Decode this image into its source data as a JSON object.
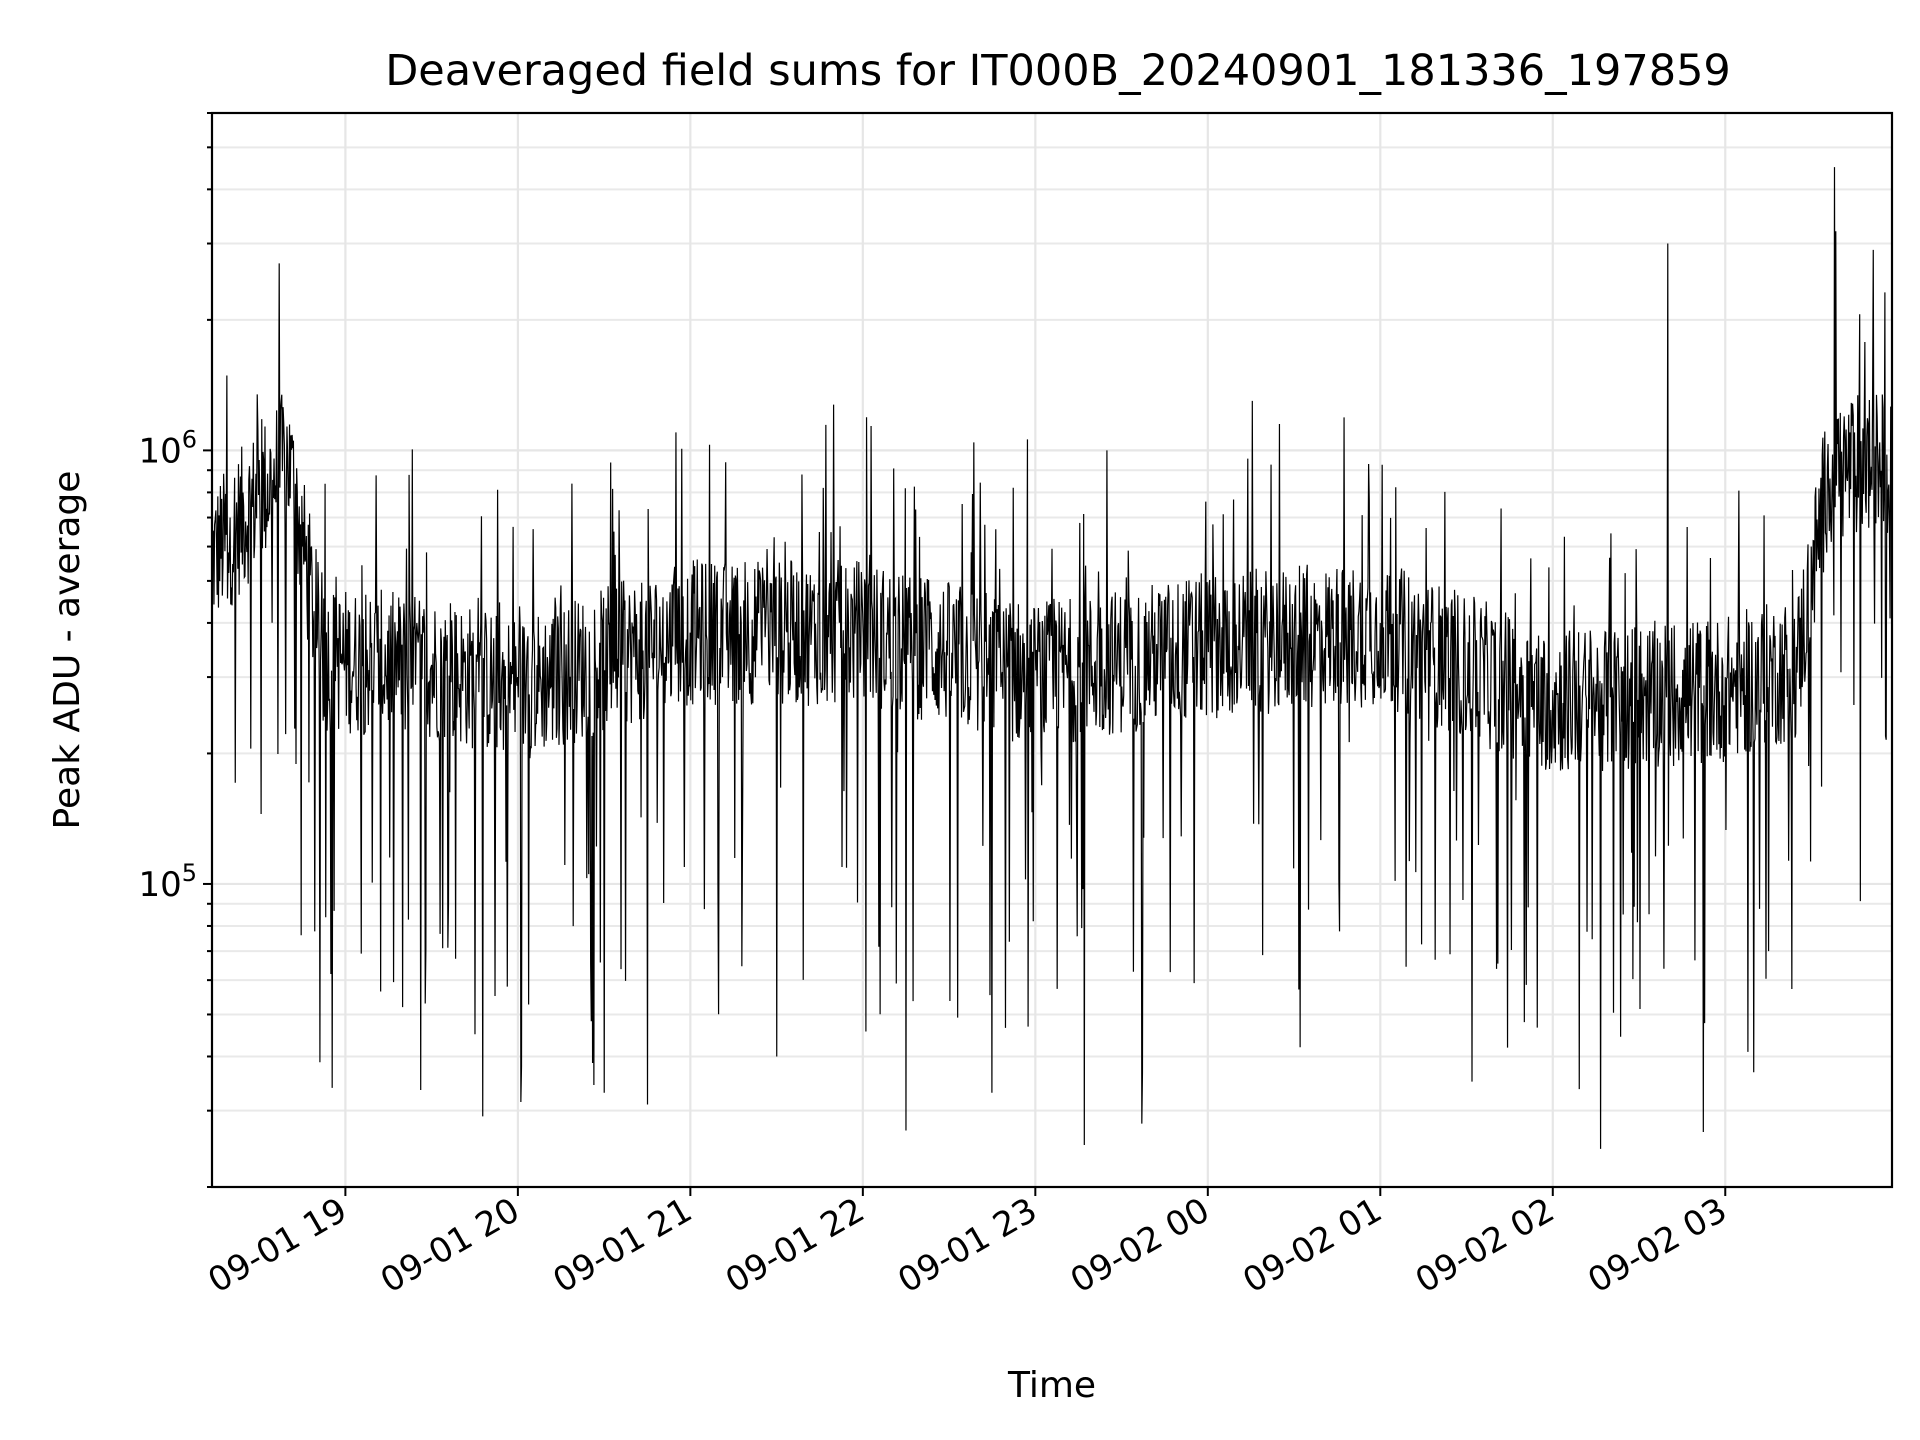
{
  "chart_data": {
    "type": "line",
    "title": "Deaveraged field sums for IT000B_20240901_181336_197859",
    "xlabel": "Time",
    "ylabel": "Peak ADU - average",
    "yscale": "log",
    "ylim": [
      20000,
      6000000
    ],
    "xlim": [
      "2024-09-01 18:13:36",
      "2024-09-02 03:58:00"
    ],
    "grid": true,
    "x_ticks": [
      {
        "label": "09-01 19",
        "time": "2024-09-01 19:00"
      },
      {
        "label": "09-01 20",
        "time": "2024-09-01 20:00"
      },
      {
        "label": "09-01 21",
        "time": "2024-09-01 21:00"
      },
      {
        "label": "09-01 22",
        "time": "2024-09-01 22:00"
      },
      {
        "label": "09-01 23",
        "time": "2024-09-01 23:00"
      },
      {
        "label": "09-02 00",
        "time": "2024-09-02 00:00"
      },
      {
        "label": "09-02 01",
        "time": "2024-09-02 01:00"
      },
      {
        "label": "09-02 02",
        "time": "2024-09-02 02:00"
      },
      {
        "label": "09-02 03",
        "time": "2024-09-02 03:00"
      }
    ],
    "y_ticks": [
      {
        "base": "10",
        "exp": "5",
        "value": 100000
      },
      {
        "base": "10",
        "exp": "6",
        "value": 1000000
      }
    ],
    "series": [
      {
        "color": "#000000",
        "points": [
          {
            "time": "2024-09-01 18:13:36",
            "value": 520000
          },
          {
            "time": "2024-09-01 18:20",
            "value": 700000
          },
          {
            "time": "2024-09-01 18:30",
            "value": 950000
          },
          {
            "time": "2024-09-01 18:37",
            "value": 2700000
          },
          {
            "time": "2024-09-01 18:45",
            "value": 600000
          },
          {
            "time": "2024-09-01 18:50",
            "value": 350000
          },
          {
            "time": "2024-09-01 18:55",
            "value": 62000
          },
          {
            "time": "2024-09-01 19:00",
            "value": 330000
          },
          {
            "time": "2024-09-01 19:20",
            "value": 52000
          },
          {
            "time": "2024-09-01 19:30",
            "value": 320000
          },
          {
            "time": "2024-09-01 19:45",
            "value": 45000
          },
          {
            "time": "2024-09-01 20:00",
            "value": 300000
          },
          {
            "time": "2024-09-01 20:30",
            "value": 33000
          },
          {
            "time": "2024-09-01 20:45",
            "value": 31000
          },
          {
            "time": "2024-09-01 20:55",
            "value": 1100000
          },
          {
            "time": "2024-09-01 21:00",
            "value": 380000
          },
          {
            "time": "2024-09-01 21:30",
            "value": 40000
          },
          {
            "time": "2024-09-01 22:00",
            "value": 420000
          },
          {
            "time": "2024-09-01 22:15",
            "value": 27000
          },
          {
            "time": "2024-09-01 22:45",
            "value": 33000
          },
          {
            "time": "2024-09-01 23:00",
            "value": 350000
          },
          {
            "time": "2024-09-01 23:17",
            "value": 25000
          },
          {
            "time": "2024-09-01 23:25",
            "value": 1000000
          },
          {
            "time": "2024-09-01 23:37",
            "value": 28000
          },
          {
            "time": "2024-09-02 00:00",
            "value": 380000
          },
          {
            "time": "2024-09-02 00:25",
            "value": 1150000
          },
          {
            "time": "2024-09-02 00:32",
            "value": 42000
          },
          {
            "time": "2024-09-02 01:00",
            "value": 400000
          },
          {
            "time": "2024-09-02 01:32",
            "value": 35000
          },
          {
            "time": "2024-09-02 01:50",
            "value": 48000
          },
          {
            "time": "2024-09-02 02:00",
            "value": 280000
          },
          {
            "time": "2024-09-02 02:40",
            "value": 3000000
          },
          {
            "time": "2024-09-02 03:00",
            "value": 300000
          },
          {
            "time": "2024-09-02 03:15",
            "value": 70000
          },
          {
            "time": "2024-09-02 03:30",
            "value": 600000
          },
          {
            "time": "2024-09-02 03:38",
            "value": 4500000
          },
          {
            "time": "2024-09-02 03:45",
            "value": 1100000
          },
          {
            "time": "2024-09-02 03:58",
            "value": 950000
          }
        ]
      }
    ]
  }
}
